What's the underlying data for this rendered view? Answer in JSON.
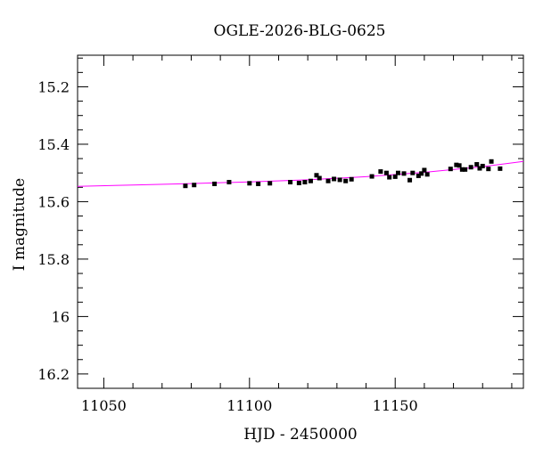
{
  "chart_data": {
    "type": "scatter",
    "title": "OGLE-2026-BLG-0625",
    "xlabel": "HJD - 2450000",
    "ylabel": "I magnitude",
    "xlim": [
      11041,
      11194
    ],
    "ylim": [
      16.25,
      15.09
    ],
    "y_inverted": true,
    "xticks": [
      11050,
      11100,
      11150
    ],
    "xtick_labels": [
      "11050",
      "11100",
      "11150"
    ],
    "yticks": [
      15.2,
      15.4,
      15.6,
      15.8,
      16.0,
      16.2
    ],
    "ytick_labels": [
      "15.2",
      "15.4",
      "15.6",
      "15.8",
      "16",
      "16.2"
    ],
    "grid": false,
    "point_color": "#000000",
    "model_color": "#ff00ff",
    "series": [
      {
        "marker": "square",
        "x": [
          11078,
          11081,
          11088,
          11093,
          11100,
          11103,
          11107,
          11114,
          11117,
          11119,
          11121,
          11123,
          11124,
          11127,
          11129,
          11131,
          11133,
          11135,
          11142,
          11145,
          11147,
          11148,
          11150,
          11151,
          11153,
          11155,
          11156,
          11158,
          11159,
          11160,
          11161,
          11169,
          11171,
          11172,
          11173,
          11174,
          11176,
          11178,
          11179,
          11180,
          11182,
          11183,
          11186
        ],
        "y": [
          15.545,
          15.542,
          15.538,
          15.532,
          15.536,
          15.538,
          15.536,
          15.532,
          15.535,
          15.532,
          15.528,
          15.508,
          15.518,
          15.528,
          15.521,
          15.524,
          15.528,
          15.522,
          15.512,
          15.495,
          15.5,
          15.515,
          15.513,
          15.5,
          15.502,
          15.525,
          15.5,
          15.51,
          15.502,
          15.49,
          15.505,
          15.486,
          15.472,
          15.474,
          15.488,
          15.488,
          15.48,
          15.47,
          15.484,
          15.476,
          15.486,
          15.46,
          15.485
        ]
      }
    ],
    "model": {
      "x": [
        11041,
        11060,
        11080,
        11100,
        11120,
        11140,
        11160,
        11180,
        11194
      ],
      "y": [
        15.547,
        15.542,
        15.537,
        15.531,
        15.524,
        15.513,
        15.498,
        15.478,
        15.46
      ]
    }
  }
}
